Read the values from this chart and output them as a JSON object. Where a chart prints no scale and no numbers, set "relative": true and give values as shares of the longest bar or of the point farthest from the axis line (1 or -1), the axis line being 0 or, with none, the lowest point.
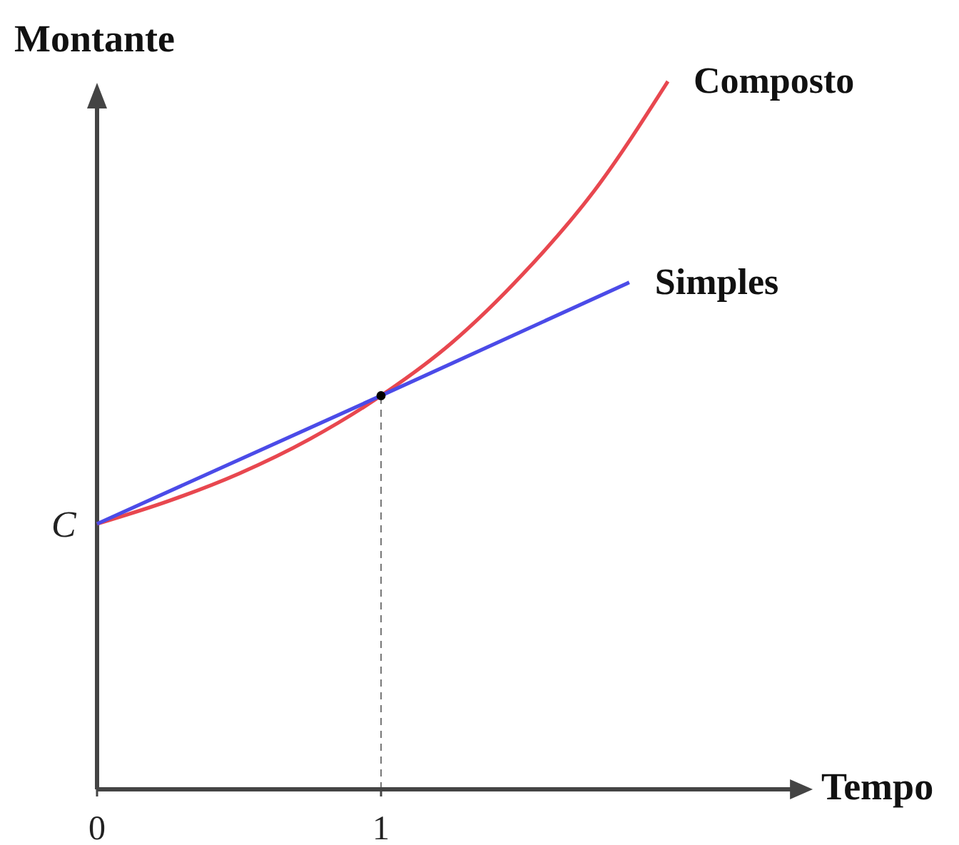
{
  "chart_data": {
    "type": "line",
    "xlabel": "Tempo",
    "ylabel": "Montante",
    "relative": true,
    "xlim": [
      0,
      2.45
    ],
    "xticks": [
      0,
      1
    ],
    "series": [
      {
        "name": "Composto",
        "color": "#e8474f",
        "x": [
          0,
          0.25,
          0.5,
          0.75,
          1,
          1.25,
          1.5,
          1.75,
          2.01
        ],
        "values": [
          0.375,
          0.407,
          0.446,
          0.495,
          0.556,
          0.631,
          0.728,
          0.845,
          1.0
        ]
      },
      {
        "name": "Simples",
        "color": "#4b4be8",
        "x": [
          0,
          1,
          1.874
        ],
        "values": [
          0.375,
          0.556,
          0.716
        ]
      },
      {
        "type": "scatter",
        "color": "#000000",
        "marker": "circle",
        "x": [
          1
        ],
        "values": [
          0.556
        ]
      }
    ],
    "ref_lines": [
      {
        "axis": "x",
        "value": 1,
        "color": "#777777",
        "line_style": "dashed"
      }
    ],
    "annotations": [
      {
        "text": "C",
        "x": 0,
        "y": 0.375
      }
    ]
  }
}
